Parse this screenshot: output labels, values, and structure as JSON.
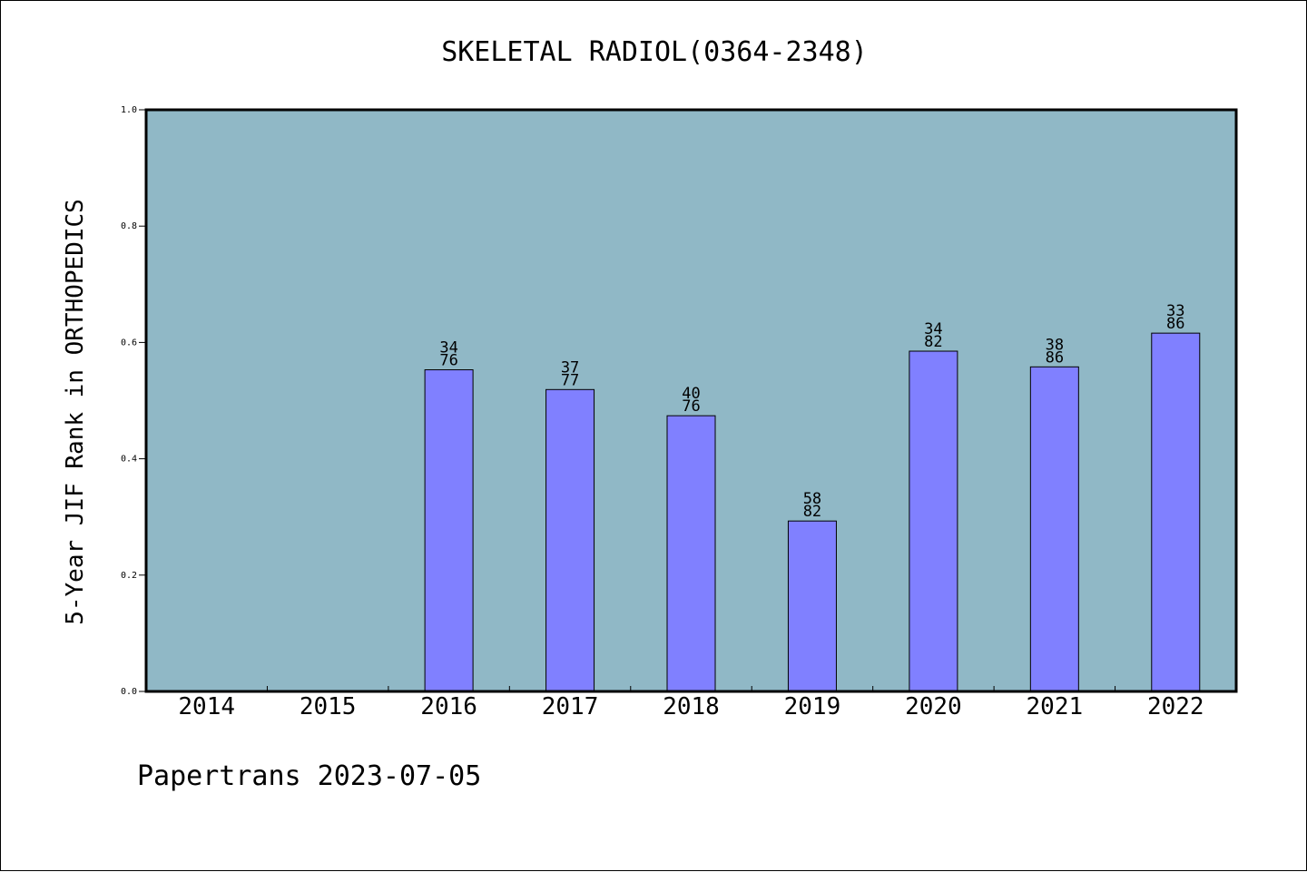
{
  "colors": {
    "plot_background": "#90b8c6",
    "bar_fill": "#8080ff",
    "bar_stroke": "#000000",
    "text": "#000000"
  },
  "chart_data": {
    "type": "bar",
    "title": "SKELETAL RADIOL(0364-2348)",
    "xlabel": "",
    "ylabel": "5-Year JIF Rank in ORTHOPEDICS",
    "ylim": [
      0,
      1.0
    ],
    "yticks": [
      "0.0",
      "0.2",
      "0.4",
      "0.6",
      "0.8",
      "1.0"
    ],
    "grid": false,
    "categories": [
      "2014",
      "2015",
      "2016",
      "2017",
      "2018",
      "2019",
      "2020",
      "2021",
      "2022"
    ],
    "values": [
      null,
      null,
      0.553,
      0.519,
      0.474,
      0.293,
      0.585,
      0.558,
      0.616
    ],
    "rank_labels": [
      null,
      null,
      [
        "34",
        "76"
      ],
      [
        "37",
        "77"
      ],
      [
        "40",
        "76"
      ],
      [
        "58",
        "82"
      ],
      [
        "34",
        "82"
      ],
      [
        "38",
        "86"
      ],
      [
        "33",
        "86"
      ]
    ]
  },
  "footer": "Papertrans 2023-07-05"
}
